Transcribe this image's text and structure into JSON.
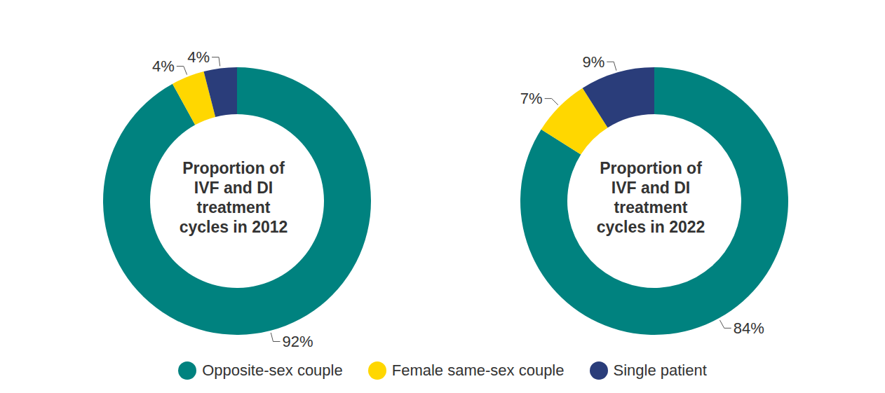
{
  "chart_data": [
    {
      "type": "pie",
      "title": "Proportion of IVF and DI treatment cycles in 2012",
      "categories": [
        "Opposite-sex couple",
        "Female same-sex couple",
        "Single patient"
      ],
      "values": [
        92,
        4,
        4
      ],
      "value_labels": [
        "92%",
        "4%",
        "4%"
      ],
      "colors": [
        "#00827f",
        "#ffd700",
        "#2a3d7a"
      ],
      "data_labels": true,
      "legend": "bottom"
    },
    {
      "type": "pie",
      "title": "Proportion of IVF and DI treatment cycles in 2022",
      "categories": [
        "Opposite-sex couple",
        "Female same-sex couple",
        "Single patient"
      ],
      "values": [
        84,
        7,
        9
      ],
      "value_labels": [
        "84%",
        "7%",
        "9%"
      ],
      "colors": [
        "#00827f",
        "#ffd700",
        "#2a3d7a"
      ],
      "data_labels": true
    }
  ]
}
